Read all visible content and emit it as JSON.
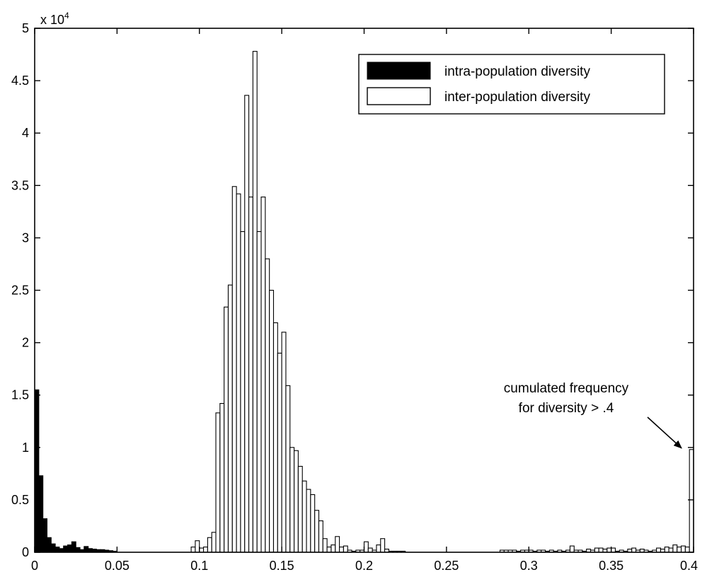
{
  "chart_data": {
    "type": "bar",
    "xlim": [
      0,
      0.4
    ],
    "ylim": [
      0,
      50000
    ],
    "x_ticks": [
      0,
      0.05,
      0.1,
      0.15,
      0.2,
      0.25,
      0.3,
      0.35,
      0.4
    ],
    "x_tick_labels": [
      "0",
      "0.05",
      "0.1",
      "0.15",
      "0.2",
      "0.25",
      "0.3",
      "0.35",
      "0.4"
    ],
    "y_ticks": [
      0,
      5000,
      10000,
      15000,
      20000,
      25000,
      30000,
      35000,
      40000,
      45000,
      50000
    ],
    "y_tick_labels": [
      "0",
      "0.5",
      "1",
      "1.5",
      "2",
      "2.5",
      "3",
      "3.5",
      "4",
      "4.5",
      "5"
    ],
    "y_multiplier_base": "x 10",
    "y_multiplier_exp": "4",
    "bin_width": 0.0025,
    "legend_position": "top-right",
    "grid": false,
    "series": [
      {
        "name": "intra-population diversity",
        "fill": "#000000",
        "x": [
          0.00125,
          0.00375,
          0.00625,
          0.00875,
          0.01125,
          0.01375,
          0.01625,
          0.01875,
          0.02125,
          0.02375,
          0.02625,
          0.02875,
          0.03125,
          0.03375,
          0.03625,
          0.03875,
          0.04125,
          0.04375,
          0.04625,
          0.04875
        ],
        "values": [
          15500,
          7300,
          3200,
          1400,
          800,
          500,
          350,
          600,
          700,
          1000,
          450,
          250,
          550,
          350,
          300,
          250,
          250,
          200,
          150,
          100
        ]
      },
      {
        "name": "inter-population diversity",
        "fill": "#ffffff",
        "x": [
          0.09625,
          0.09875,
          0.10125,
          0.10375,
          0.10625,
          0.10875,
          0.11125,
          0.11375,
          0.11625,
          0.11875,
          0.12125,
          0.12375,
          0.12625,
          0.12875,
          0.13125,
          0.13375,
          0.13625,
          0.13875,
          0.14125,
          0.14375,
          0.14625,
          0.14875,
          0.15125,
          0.15375,
          0.15625,
          0.15875,
          0.16125,
          0.16375,
          0.16625,
          0.16875,
          0.17125,
          0.17375,
          0.17625,
          0.17875,
          0.18125,
          0.18375,
          0.18625,
          0.18875,
          0.19125,
          0.19375,
          0.19625,
          0.19875,
          0.20125,
          0.20375,
          0.20625,
          0.20875,
          0.21125,
          0.21375,
          0.21625,
          0.21875,
          0.22125,
          0.22375,
          0.28375,
          0.28625,
          0.28875,
          0.29125,
          0.29375,
          0.29625,
          0.29875,
          0.30125,
          0.30375,
          0.30625,
          0.30875,
          0.31125,
          0.31375,
          0.31625,
          0.31875,
          0.32125,
          0.32375,
          0.32625,
          0.32875,
          0.33125,
          0.33375,
          0.33625,
          0.33875,
          0.34125,
          0.34375,
          0.34625,
          0.34875,
          0.35125,
          0.35375,
          0.35625,
          0.35875,
          0.36125,
          0.36375,
          0.36625,
          0.36875,
          0.37125,
          0.37375,
          0.37625,
          0.37875,
          0.38125,
          0.38375,
          0.38625,
          0.38875,
          0.39125,
          0.39375,
          0.39625,
          0.39875
        ],
        "values": [
          500,
          1100,
          400,
          500,
          1400,
          1900,
          13300,
          14200,
          23400,
          25500,
          34900,
          34200,
          30600,
          43600,
          33900,
          47800,
          30600,
          33900,
          28000,
          25000,
          21900,
          19000,
          21000,
          15900,
          10000,
          9700,
          8200,
          6800,
          6000,
          5500,
          4000,
          3000,
          1300,
          500,
          700,
          1500,
          500,
          600,
          200,
          100,
          200,
          200,
          1000,
          400,
          200,
          700,
          1300,
          300,
          100,
          100,
          100,
          100,
          200,
          200,
          200,
          200,
          100,
          200,
          200,
          200,
          100,
          200,
          200,
          100,
          200,
          100,
          200,
          100,
          200,
          600,
          200,
          200,
          100,
          300,
          200,
          400,
          400,
          300,
          400,
          400,
          100,
          200,
          100,
          300,
          400,
          200,
          300,
          200,
          100,
          200,
          400,
          300,
          500,
          400,
          700,
          500,
          600,
          500,
          9800
        ]
      }
    ],
    "annotation": {
      "lines": [
        "cumulated frequency",
        "for diversity > .4"
      ],
      "points_to_x": 0.39875,
      "points_to_y": 9800
    }
  }
}
